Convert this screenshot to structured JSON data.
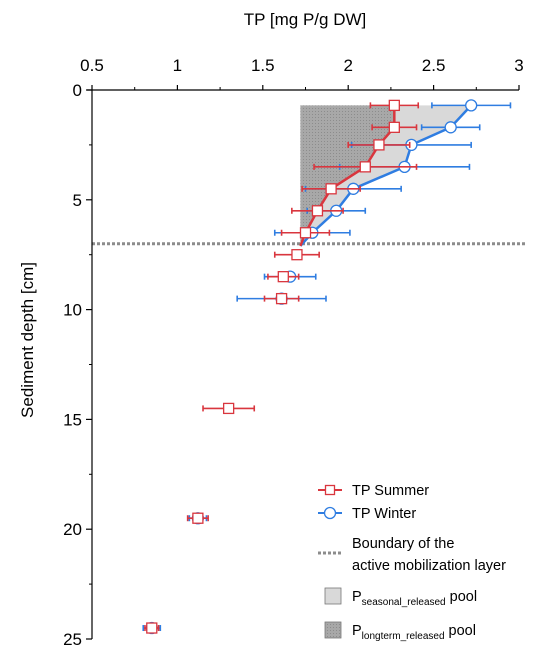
{
  "chart_data": {
    "type": "scatter",
    "xlabel": "TP [mg P/g DW]",
    "ylabel": "Sediment depth  [cm]",
    "xlim": [
      0.5,
      3
    ],
    "ylim": [
      0,
      25
    ],
    "y_inverted": true,
    "x_axis_position": "top",
    "xticks": [
      "0.5",
      "1",
      "1.5",
      "2",
      "2.5",
      "3"
    ],
    "yticks": [
      "0",
      "5",
      "10",
      "15",
      "20",
      "25"
    ],
    "xtick_values": [
      0.5,
      1,
      1.5,
      2,
      2.5,
      3
    ],
    "ytick_values": [
      0,
      5,
      10,
      15,
      20,
      25
    ],
    "grid": false,
    "legend_position": "bottom-right",
    "boundary_depth": 7,
    "series": [
      {
        "name": "TP Summer",
        "color": "#d9363e",
        "marker": "square",
        "points": [
          {
            "y": 0.7,
            "x": 2.27,
            "xerr": 0.14
          },
          {
            "y": 1.7,
            "x": 2.27,
            "xerr": 0.13
          },
          {
            "y": 2.5,
            "x": 2.18,
            "xerr": 0.18
          },
          {
            "y": 3.5,
            "x": 2.1,
            "xerr": 0.3
          },
          {
            "y": 4.5,
            "x": 1.9,
            "xerr": 0.17
          },
          {
            "y": 5.5,
            "x": 1.82,
            "xerr": 0.15
          },
          {
            "y": 6.5,
            "x": 1.75,
            "xerr": 0.14
          },
          {
            "y": 7.5,
            "x": 1.7,
            "xerr": 0.13
          },
          {
            "y": 8.5,
            "x": 1.62,
            "xerr": 0.09
          },
          {
            "y": 9.5,
            "x": 1.61,
            "xerr": 0.1
          },
          {
            "y": 14.5,
            "x": 1.3,
            "xerr": 0.15
          },
          {
            "y": 19.5,
            "x": 1.12,
            "xerr": 0.06
          },
          {
            "y": 24.5,
            "x": 0.85,
            "xerr": 0.04
          }
        ]
      },
      {
        "name": "TP Winter",
        "color": "#2f7de1",
        "marker": "circle",
        "points": [
          {
            "y": 0.7,
            "x": 2.72,
            "xerr": 0.23
          },
          {
            "y": 1.7,
            "x": 2.6,
            "xerr": 0.17
          },
          {
            "y": 2.5,
            "x": 2.37,
            "xerr": 0.35
          },
          {
            "y": 3.5,
            "x": 2.33,
            "xerr": 0.38
          },
          {
            "y": 4.5,
            "x": 2.03,
            "xerr": 0.28
          },
          {
            "y": 5.5,
            "x": 1.93,
            "xerr": 0.17
          },
          {
            "y": 6.5,
            "x": 1.79,
            "xerr": 0.22
          },
          {
            "y": 8.5,
            "x": 1.66,
            "xerr": 0.15
          },
          {
            "y": 9.5,
            "x": 1.61,
            "xerr": 0.26
          },
          {
            "y": 19.5,
            "x": 1.12,
            "xerr": 0.05
          },
          {
            "y": 24.5,
            "x": 0.85,
            "xerr": 0.05
          }
        ]
      }
    ],
    "pools": {
      "seasonal_color": "#d9d9d9",
      "longterm_color": "#a6a6a6",
      "top_depth": 0.7,
      "base_x": 1.72
    },
    "legend": {
      "summer": "TP Summer",
      "winter": "TP Winter",
      "boundary_line1": "Boundary of the",
      "boundary_line2": "active mobilization layer",
      "seasonal_prefix": "P",
      "seasonal_sub": "seasonal_released",
      "seasonal_suffix": " pool",
      "longterm_prefix": "P",
      "longterm_sub": "longterm_released",
      "longterm_suffix": " pool"
    }
  }
}
